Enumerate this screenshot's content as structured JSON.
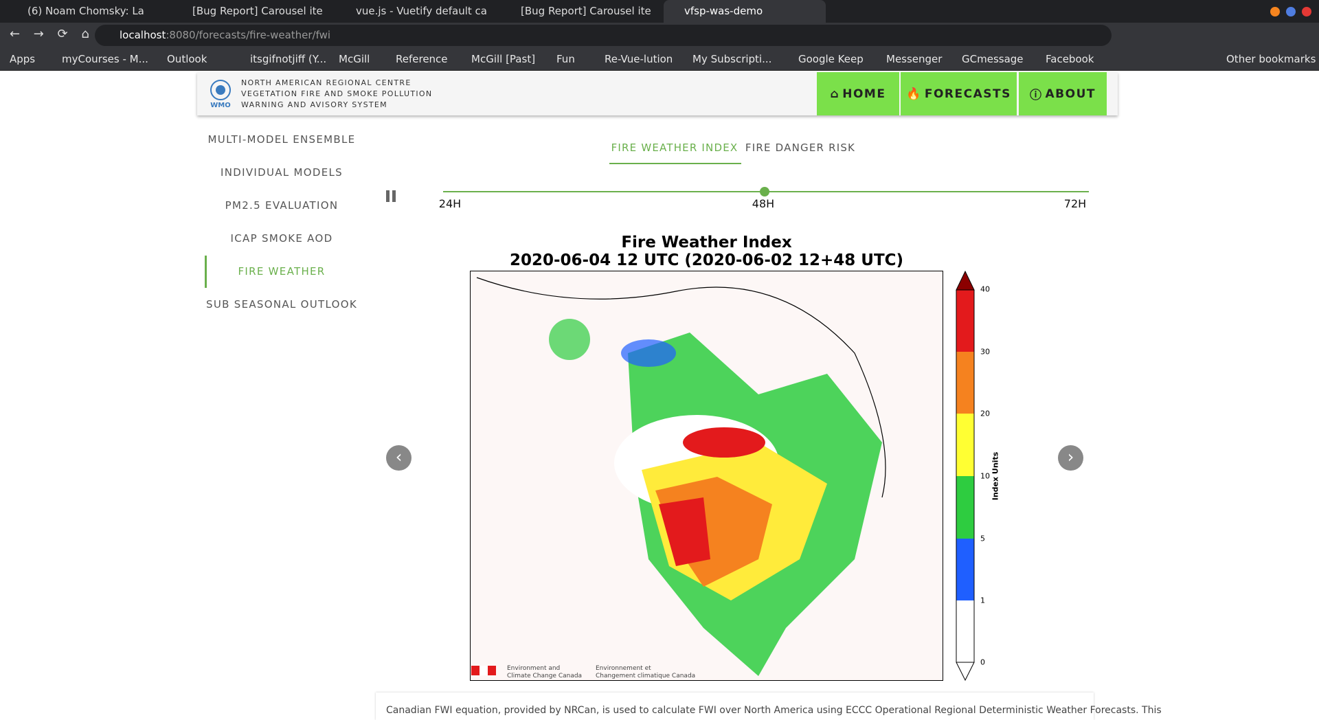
{
  "browser": {
    "tabs": [
      "(6) Noam Chomsky: La",
      "[Bug Report] Carousel ite",
      "vue.js - Vuetify default ca",
      "[Bug Report] Carousel ite",
      "vfsp-was-demo"
    ],
    "url_host": "localhost",
    "url_path": ":8080/forecasts/fire-weather/fwi",
    "bookmarks": [
      "Apps",
      "myCourses - M...",
      "Outlook",
      "itsgifnotjiff (Y...",
      "McGill",
      "Reference",
      "McGill [Past]",
      "Fun",
      "Re-Vue-lution",
      "My Subscripti...",
      "Google Keep",
      "Messenger",
      "GCmessage",
      "Facebook"
    ],
    "other_bookmarks": "Other bookmarks"
  },
  "header": {
    "logo": "WMO",
    "title_lines": [
      "NORTH AMERICAN REGIONAL CENTRE",
      "VEGETATION FIRE AND SMOKE POLLUTION",
      "WARNING AND AVISORY SYSTEM"
    ],
    "nav": [
      "HOME",
      "FORECASTS",
      "ABOUT"
    ]
  },
  "sidebar": [
    "MULTI-MODEL ENSEMBLE",
    "INDIVIDUAL MODELS",
    "PM2.5 EVALUATION",
    "ICAP SMOKE AOD",
    "FIRE WEATHER",
    "SUB SEASONAL OUTLOOK"
  ],
  "tabs": [
    "FIRE WEATHER INDEX",
    "FIRE DANGER RISK"
  ],
  "slider_labels": [
    "24H",
    "48H",
    "72H"
  ],
  "figure": {
    "title": "Fire Weather Index",
    "subtitle": "2020-06-04 12 UTC (2020-06-02 12+48 UTC)",
    "colorbar_label": "Index Units",
    "colorbar_ticks": [
      "40",
      "30",
      "20",
      "10",
      "5",
      "1",
      "0"
    ],
    "credits": [
      "Environment and",
      "Climate Change Canada",
      "Environnement et",
      "Changement climatique Canada"
    ]
  },
  "description": "Canadian FWI equation, provided by NRCan, is used to calculate FWI over North America using ECCC Operational Regional Deterministic Weather Forecasts. This"
}
